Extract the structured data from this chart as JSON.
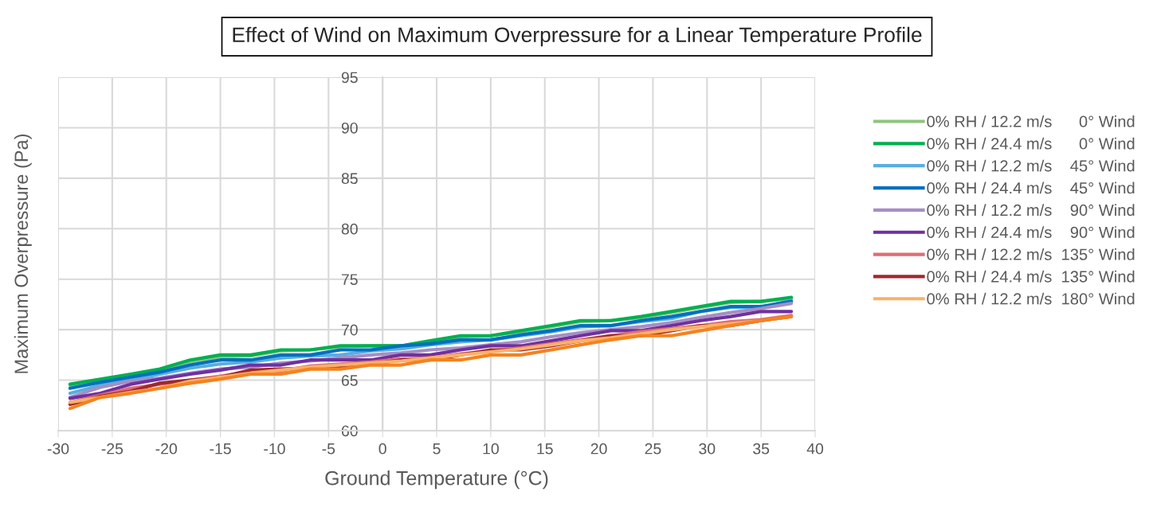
{
  "chart_data": {
    "type": "line",
    "title": "Effect of Wind on Maximum Overpressure for a Linear Temperature Profile",
    "xlabel": "Ground Temperature (°C)",
    "ylabel": "Maximum Overpressure (Pa)",
    "x": [
      -28.9,
      -26.1,
      -23.3,
      -20.6,
      -17.8,
      -15,
      -12.2,
      -9.4,
      -6.7,
      -3.9,
      -1.1,
      1.7,
      4.4,
      7.2,
      10,
      12.8,
      15.6,
      18.3,
      21.1,
      23.9,
      26.7,
      29.4,
      32.2,
      35,
      37.8
    ],
    "xlim": [
      -30,
      40
    ],
    "xticks": [
      -30,
      -25,
      -20,
      -15,
      -10,
      -5,
      0,
      5,
      10,
      15,
      20,
      25,
      30,
      35,
      40
    ],
    "ylim": [
      60,
      95
    ],
    "yticks": [
      60,
      65,
      70,
      75,
      80,
      85,
      90,
      95
    ],
    "grid": true,
    "legend": "right",
    "marker": "none",
    "line_style": "solid",
    "series": [
      {
        "name": "0% RH / 12.2 m/s      0° Wind",
        "color": "#8cc47e",
        "values": [
          64.5,
          65.0,
          65.5,
          66.0,
          66.8,
          67.3,
          67.4,
          67.9,
          68.0,
          68.3,
          68.4,
          68.4,
          68.8,
          69.3,
          69.4,
          69.8,
          70.3,
          70.8,
          70.9,
          71.2,
          71.7,
          72.2,
          72.7,
          72.8,
          73.1
        ]
      },
      {
        "name": "0% RH / 24.4 m/s      0° Wind",
        "color": "#00b050",
        "values": [
          64.6,
          65.1,
          65.6,
          66.1,
          67.0,
          67.5,
          67.5,
          68.0,
          68.0,
          68.4,
          68.4,
          68.4,
          68.9,
          69.4,
          69.4,
          69.9,
          70.4,
          70.9,
          70.9,
          71.3,
          71.8,
          72.3,
          72.8,
          72.8,
          73.2
        ]
      },
      {
        "name": "0% RH / 12.2 m/s    45° Wind",
        "color": "#5aaee0",
        "values": [
          63.7,
          64.5,
          65.0,
          65.6,
          66.2,
          66.6,
          66.8,
          67.2,
          67.4,
          67.5,
          67.9,
          68.1,
          68.5,
          68.8,
          69.0,
          69.4,
          69.8,
          70.3,
          70.4,
          70.8,
          71.1,
          71.8,
          72.2,
          72.2,
          72.9
        ]
      },
      {
        "name": "0% RH / 24.4 m/s    45° Wind",
        "color": "#0070c0",
        "values": [
          64.2,
          64.8,
          65.3,
          65.8,
          66.5,
          67.0,
          67.0,
          67.5,
          67.5,
          68.0,
          68.0,
          68.4,
          68.6,
          69.0,
          69.0,
          69.5,
          69.9,
          70.4,
          70.4,
          70.9,
          71.3,
          71.8,
          72.3,
          72.3,
          72.8
        ]
      },
      {
        "name": "0% RH / 12.2 m/s    90° Wind",
        "color": "#a58fc4",
        "values": [
          63.3,
          64.3,
          64.9,
          65.2,
          65.7,
          66.1,
          66.3,
          66.7,
          66.9,
          67.2,
          67.5,
          67.7,
          68.0,
          68.2,
          68.5,
          68.8,
          69.3,
          69.7,
          70.0,
          70.3,
          70.7,
          71.2,
          71.7,
          72.1,
          72.6
        ]
      },
      {
        "name": "0% RH / 24.4 m/s    90° Wind",
        "color": "#7030a0",
        "values": [
          63.2,
          63.7,
          64.6,
          65.1,
          65.6,
          66.0,
          66.5,
          66.5,
          67.0,
          67.0,
          67.0,
          67.5,
          67.5,
          68.0,
          68.4,
          68.4,
          68.9,
          69.4,
          69.9,
          69.9,
          70.4,
          70.9,
          71.3,
          71.8,
          71.8
        ]
      },
      {
        "name": "0% RH / 12.2 m/s  135° Wind",
        "color": "#e06c75",
        "values": [
          62.8,
          63.5,
          64.2,
          64.6,
          65.0,
          65.4,
          65.8,
          65.9,
          66.4,
          66.6,
          66.8,
          67.1,
          67.2,
          67.6,
          67.9,
          68.2,
          68.6,
          69.0,
          69.4,
          69.8,
          70.1,
          70.4,
          70.8,
          71.0,
          71.4
        ]
      },
      {
        "name": "0% RH / 24.4 m/s  135° Wind",
        "color": "#a0282d",
        "values": [
          62.6,
          63.4,
          63.9,
          64.7,
          65.0,
          65.3,
          66.0,
          66.1,
          66.2,
          66.4,
          66.6,
          67.0,
          67.0,
          67.5,
          68.0,
          68.0,
          68.4,
          68.9,
          69.4,
          69.4,
          69.9,
          70.4,
          70.4,
          70.9,
          71.3
        ]
      },
      {
        "name": "0% RH / 12.2 m/s  180° Wind",
        "color": "#f9b168",
        "values": [
          62.8,
          63.3,
          63.8,
          64.2,
          64.9,
          65.3,
          65.7,
          66.0,
          66.3,
          66.5,
          66.7,
          66.9,
          67.2,
          67.5,
          67.8,
          68.1,
          68.5,
          68.9,
          69.2,
          69.6,
          70.0,
          70.3,
          70.6,
          70.9,
          71.3
        ]
      },
      {
        "color": "#f58220",
        "values": [
          62.2,
          63.3,
          63.7,
          64.2,
          64.7,
          65.1,
          65.6,
          65.6,
          66.1,
          66.1,
          66.5,
          66.5,
          67.0,
          67.0,
          67.5,
          67.5,
          68.0,
          68.5,
          69.0,
          69.4,
          69.4,
          69.9,
          70.4,
          70.9,
          71.3
        ]
      }
    ]
  }
}
